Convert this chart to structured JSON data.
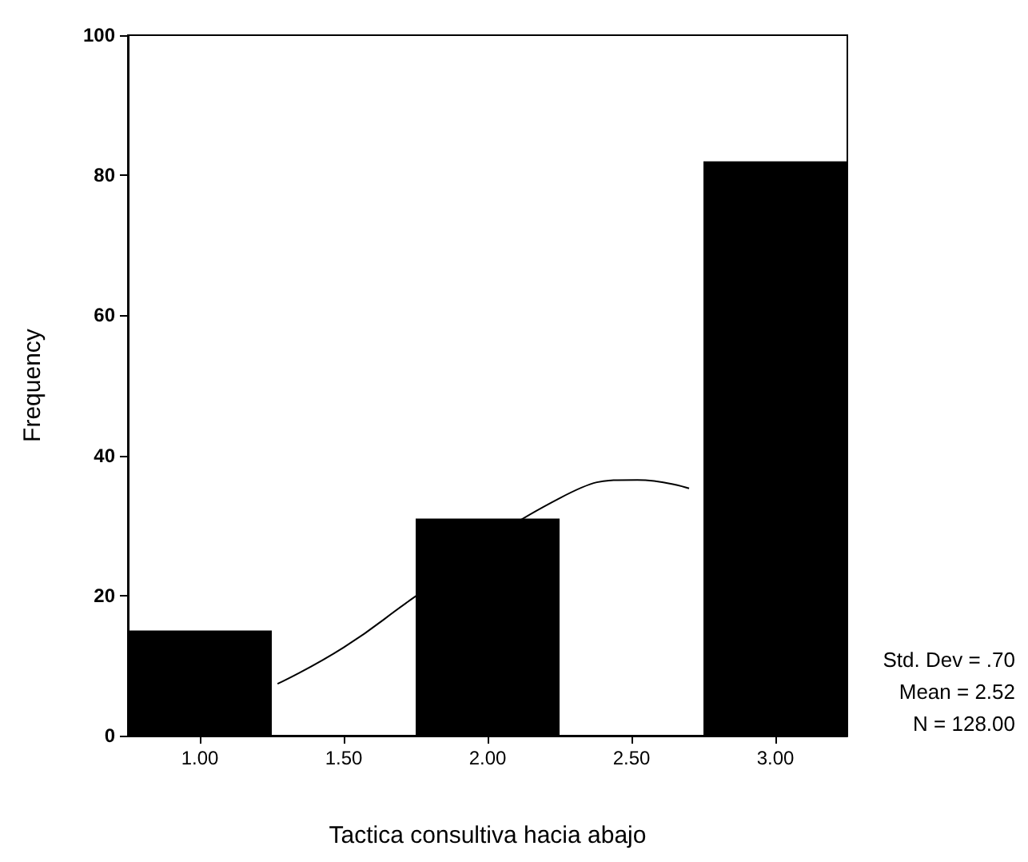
{
  "chart_data": {
    "type": "histogram",
    "xlabel": "Tactica consultiva hacia abajo",
    "ylabel": "Frequency",
    "bins": [
      0.75,
      1.25,
      1.75,
      2.25,
      2.75,
      3.25
    ],
    "series": [
      {
        "type": "histogram",
        "color": "#000000",
        "values": [
          15,
          0,
          31,
          0,
          82
        ]
      },
      {
        "type": "line",
        "color": "#000000",
        "x": [
          1.27,
          1.5,
          1.75,
          2.25,
          2.52,
          2.7
        ],
        "values": [
          7.4,
          12.6,
          19.9,
          33.9,
          36.5,
          35.3
        ]
      }
    ],
    "xlim": [
      0.75,
      3.25
    ],
    "xticks": [
      {
        "value": 1,
        "label": "1.00"
      },
      {
        "value": 1.5,
        "label": "1.50"
      },
      {
        "value": 2,
        "label": "2.00"
      },
      {
        "value": 2.5,
        "label": "2.50"
      },
      {
        "value": 3,
        "label": "3.00"
      }
    ],
    "ylim": [
      0,
      100
    ],
    "yticks": [
      0,
      20,
      40,
      60,
      80,
      100
    ],
    "grid": false,
    "marker": "none",
    "line_style": "solid",
    "annotations": [
      "Std. Dev = .70",
      "Mean = 2.52",
      "N = 128.00"
    ]
  }
}
